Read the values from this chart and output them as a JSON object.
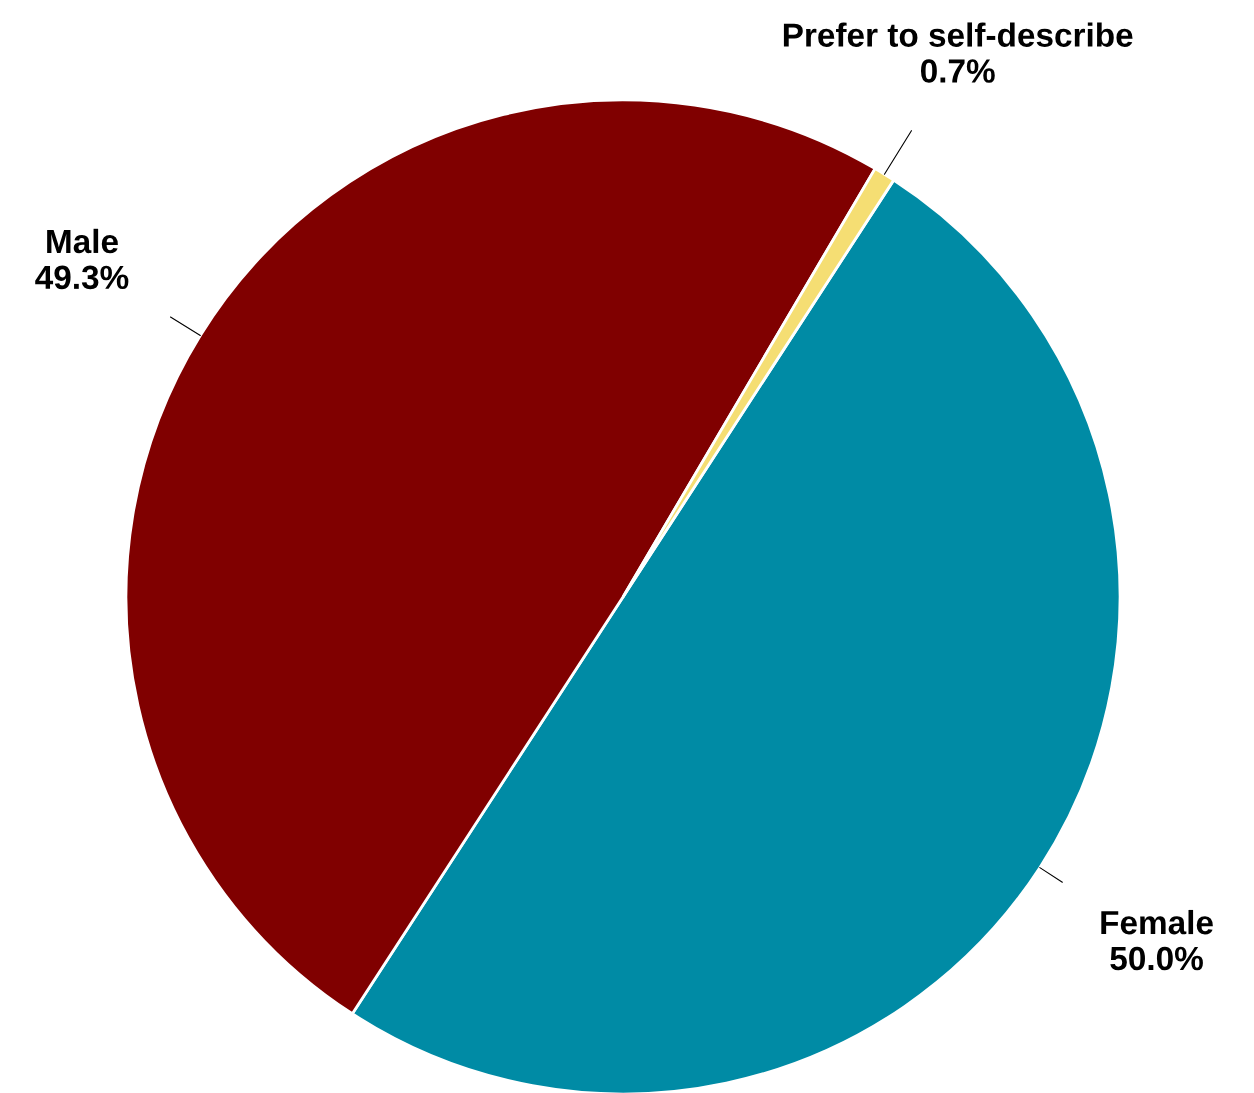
{
  "chart_data": {
    "type": "pie",
    "categories": [
      "Female",
      "Male",
      "Prefer to self-describe"
    ],
    "values": [
      50.0,
      49.3,
      0.7
    ],
    "value_labels": [
      "50.0%",
      "49.3%",
      "0.7%"
    ],
    "colors": [
      "#008ba5",
      "#800000",
      "#f5de73"
    ],
    "legend": false
  }
}
